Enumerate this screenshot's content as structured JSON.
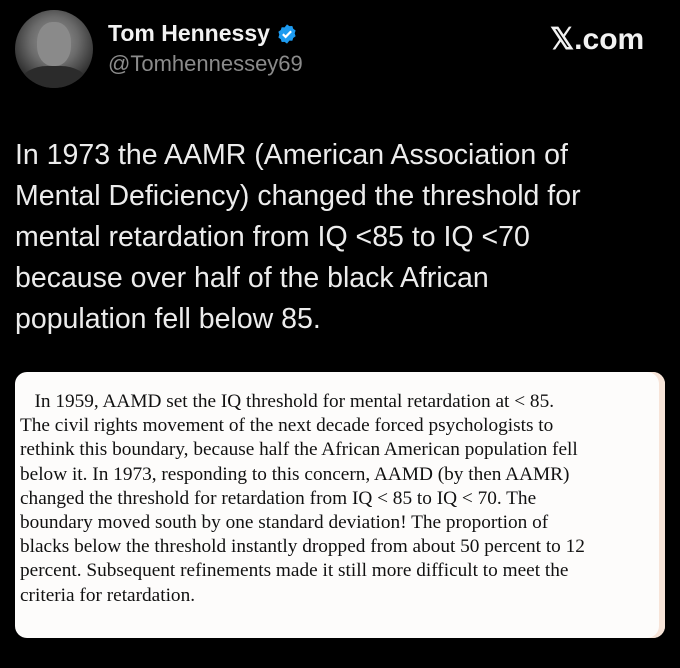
{
  "author": {
    "name": "Tom Hennessy",
    "handle": "@Tomhennessey69",
    "verified": true,
    "verified_color": "#1d9bf0"
  },
  "brand": "𝕏.com",
  "tweet_lines": [
    "In 1973 the AAMR (American Association of",
    "Mental Deficiency) changed the threshold for",
    "mental retardation from IQ <85 to IQ <70",
    "because over half of the black African",
    "population fell below 85."
  ],
  "quoted_image_lines": [
    "   In 1959, AAMD set the IQ threshold for mental retardation at < 85.",
    "The civil rights movement of the next decade forced psychologists to",
    "rethink this boundary, because half the African American population fell",
    "below it. In 1973, responding to this concern, AAMD (by then AAMR)",
    "changed the threshold for retardation from IQ < 85 to IQ < 70. The",
    "boundary moved south by one standard deviation! The proportion of",
    "blacks below the threshold instantly dropped from about 50 percent to 12",
    "percent. Subsequent refinements made it still more difficult to meet the",
    "criteria for retardation."
  ]
}
